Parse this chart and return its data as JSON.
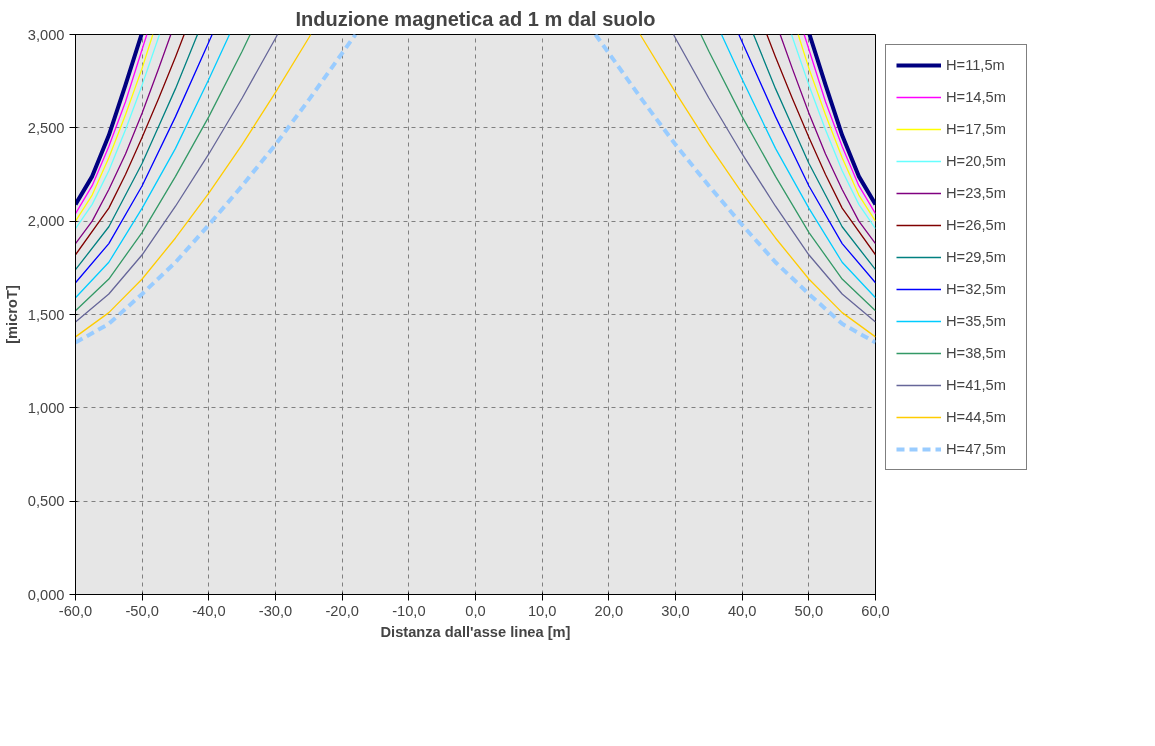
{
  "chart_data": {
    "type": "line",
    "title": "Induzione magnetica ad 1 m dal suolo",
    "xlabel": "Distanza dall'asse linea [m]",
    "ylabel": "[microT]",
    "xlim": [
      -60,
      60
    ],
    "ylim": [
      0,
      3
    ],
    "xticks": [
      {
        "value": -60,
        "label": "-60,0"
      },
      {
        "value": -50,
        "label": "-50,0"
      },
      {
        "value": -40,
        "label": "-40,0"
      },
      {
        "value": -30,
        "label": "-30,0"
      },
      {
        "value": -20,
        "label": "-20,0"
      },
      {
        "value": -10,
        "label": "-10,0"
      },
      {
        "value": 0,
        "label": "0,0"
      },
      {
        "value": 10,
        "label": "10,0"
      },
      {
        "value": 20,
        "label": "20,0"
      },
      {
        "value": 30,
        "label": "30,0"
      },
      {
        "value": 40,
        "label": "40,0"
      },
      {
        "value": 50,
        "label": "50,0"
      },
      {
        "value": 60,
        "label": "60,0"
      }
    ],
    "yticks": [
      {
        "value": 0,
        "label": "0,000"
      },
      {
        "value": 0.5,
        "label": "0,500"
      },
      {
        "value": 1,
        "label": "1,000"
      },
      {
        "value": 1.5,
        "label": "1,500"
      },
      {
        "value": 2,
        "label": "2,000"
      },
      {
        "value": 2.5,
        "label": "2,500"
      },
      {
        "value": 3,
        "label": "3,000"
      }
    ],
    "grid": true,
    "legend": "right",
    "marker": "none",
    "series": [
      {
        "name": "H=11,5m",
        "color": "#000080",
        "line_style": "solid",
        "x": [
          -60,
          -57.5,
          -55,
          -52.5,
          -50.1,
          0,
          50.1,
          52.5,
          55,
          57.5,
          60
        ],
        "values": [
          2.09,
          2.24,
          2.46,
          2.73,
          3.0,
          null,
          3.0,
          2.73,
          2.46,
          2.24,
          2.09
        ]
      },
      {
        "name": "H=14,5m",
        "color": "#ff00ff",
        "line_style": "solid",
        "x": [
          -60,
          -57.5,
          -55,
          -52.5,
          -49.3,
          0,
          49.3,
          52.5,
          55,
          57.5,
          60
        ],
        "values": [
          2.04,
          2.19,
          2.4,
          2.64,
          3.0,
          null,
          3.0,
          2.64,
          2.4,
          2.19,
          2.04
        ]
      },
      {
        "name": "H=17,5m",
        "color": "#ffff00",
        "line_style": "solid",
        "x": [
          -60,
          -57.5,
          -55,
          -52.5,
          -50,
          -48.4,
          0,
          48.4,
          50,
          52.5,
          55,
          57.5,
          60
        ],
        "values": [
          2.0,
          2.14,
          2.34,
          2.57,
          2.82,
          3.0,
          null,
          3.0,
          2.82,
          2.57,
          2.34,
          2.14,
          2.0
        ]
      },
      {
        "name": "H=20,5m",
        "color": "#66ffff",
        "line_style": "solid",
        "x": [
          -60,
          -57.5,
          -55,
          -52.5,
          -50,
          -47.4,
          0,
          47.4,
          50,
          52.5,
          55,
          57.5,
          60
        ],
        "values": [
          1.96,
          2.09,
          2.27,
          2.49,
          2.73,
          3.0,
          null,
          3.0,
          2.73,
          2.49,
          2.27,
          2.09,
          1.96
        ]
      },
      {
        "name": "H=23,5m",
        "color": "#800080",
        "line_style": "solid",
        "x": [
          -60,
          -57.5,
          -55,
          -52.5,
          -50,
          -47.5,
          -45.7,
          0,
          45.7,
          47.5,
          50,
          52.5,
          55,
          57.5,
          60
        ],
        "values": [
          1.88,
          2.0,
          2.17,
          2.36,
          2.58,
          2.82,
          3.0,
          null,
          3.0,
          2.82,
          2.58,
          2.36,
          2.17,
          2.0,
          1.88
        ]
      },
      {
        "name": "H=26,5m",
        "color": "#800000",
        "line_style": "solid",
        "x": [
          -60,
          -55,
          -52.5,
          -50,
          -47.5,
          -45,
          -43.7,
          0,
          43.7,
          45,
          47.5,
          50,
          52.5,
          55,
          60
        ],
        "values": [
          1.82,
          2.07,
          2.25,
          2.45,
          2.66,
          2.88,
          3.0,
          null,
          3.0,
          2.88,
          2.66,
          2.45,
          2.25,
          2.07,
          1.82
        ]
      },
      {
        "name": "H=29,5m",
        "color": "#008080",
        "line_style": "solid",
        "x": [
          -60,
          -55,
          -52.5,
          -50,
          -47.5,
          -45,
          -41.7,
          0,
          41.7,
          45,
          47.5,
          50,
          52.5,
          55,
          60
        ],
        "values": [
          1.74,
          1.97,
          2.14,
          2.31,
          2.51,
          2.71,
          3.0,
          null,
          3.0,
          2.71,
          2.51,
          2.31,
          2.14,
          1.97,
          1.74
        ]
      },
      {
        "name": "H=32,5m",
        "color": "#0000ff",
        "line_style": "solid",
        "x": [
          -60,
          -55,
          -50,
          -45,
          -40,
          -39.5,
          0,
          39.5,
          40,
          45,
          50,
          55,
          60
        ],
        "values": [
          1.67,
          1.88,
          2.19,
          2.56,
          2.96,
          3.0,
          null,
          3.0,
          2.96,
          2.56,
          2.19,
          1.88,
          1.67
        ]
      },
      {
        "name": "H=35,5m",
        "color": "#00ccff",
        "line_style": "solid",
        "x": [
          -60,
          -55,
          -50,
          -45,
          -40,
          -36.9,
          0,
          36.9,
          40,
          45,
          50,
          55,
          60
        ],
        "values": [
          1.59,
          1.78,
          2.07,
          2.39,
          2.76,
          3.0,
          null,
          3.0,
          2.76,
          2.39,
          2.07,
          1.78,
          1.59
        ]
      },
      {
        "name": "H=38,5m",
        "color": "#339966",
        "line_style": "solid",
        "x": [
          -60,
          -55,
          -50,
          -45,
          -40,
          -35,
          -33.8,
          0,
          33.8,
          35,
          40,
          45,
          50,
          55,
          60
        ],
        "values": [
          1.52,
          1.69,
          1.94,
          2.24,
          2.56,
          2.91,
          3.0,
          null,
          3.0,
          2.91,
          2.56,
          2.24,
          1.94,
          1.69,
          1.52
        ]
      },
      {
        "name": "H=41,5m",
        "color": "#666699",
        "line_style": "solid",
        "x": [
          -60,
          -55,
          -50,
          -45,
          -40,
          -35,
          -30,
          -29.7,
          0,
          29.7,
          30,
          35,
          40,
          45,
          50,
          55,
          60
        ],
        "values": [
          1.46,
          1.61,
          1.82,
          2.08,
          2.36,
          2.66,
          2.98,
          3.0,
          null,
          3.0,
          2.98,
          2.66,
          2.36,
          2.08,
          1.82,
          1.61,
          1.46
        ]
      },
      {
        "name": "H=44,5m",
        "color": "#ffcc00",
        "line_style": "solid",
        "x": [
          -60,
          -55,
          -50,
          -45,
          -40,
          -35,
          -30,
          -24.7,
          0,
          24.7,
          30,
          35,
          40,
          45,
          50,
          55,
          60
        ],
        "values": [
          1.38,
          1.51,
          1.69,
          1.91,
          2.15,
          2.41,
          2.69,
          3.0,
          null,
          3.0,
          2.69,
          2.41,
          2.15,
          1.91,
          1.69,
          1.51,
          1.38
        ]
      },
      {
        "name": "H=47,5m",
        "color": "#99ccff",
        "line_style": "dashed",
        "x": [
          -60,
          -55,
          -50,
          -45,
          -40,
          -35,
          -30,
          -25,
          -20,
          -18,
          0,
          18,
          20,
          25,
          30,
          35,
          40,
          45,
          50,
          55,
          60
        ],
        "values": [
          1.35,
          1.45,
          1.61,
          1.78,
          1.98,
          2.19,
          2.41,
          2.65,
          2.9,
          3.0,
          null,
          3.0,
          2.9,
          2.65,
          2.41,
          2.19,
          1.98,
          1.78,
          1.61,
          1.45,
          1.35
        ]
      }
    ]
  }
}
